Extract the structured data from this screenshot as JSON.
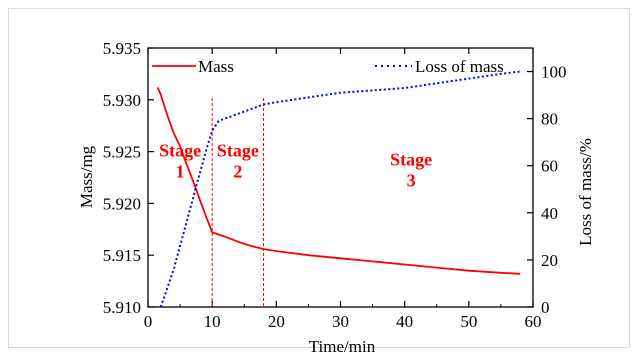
{
  "chart_data": {
    "type": "line",
    "xlabel": "Time/min",
    "ylabel": "Mass/mg",
    "y2label": "Loss of mass/%",
    "xlim": [
      0,
      60
    ],
    "ylim": [
      5.91,
      5.935
    ],
    "y2lim": [
      0,
      110
    ],
    "x_ticks": [
      "0",
      "10",
      "20",
      "30",
      "40",
      "50",
      "60"
    ],
    "y_ticks": [
      "5.910",
      "5.915",
      "5.920",
      "5.925",
      "5.930",
      "5.935"
    ],
    "y2_ticks": [
      "0",
      "20",
      "40",
      "60",
      "80",
      "100"
    ],
    "grid": false,
    "legend_placement": "top",
    "series": [
      {
        "name": "Mass",
        "axis": "left",
        "style": "solid",
        "color": "#ff0000",
        "x": [
          1.5,
          2,
          3,
          4,
          5,
          6,
          7,
          8,
          9,
          10,
          11,
          12,
          14,
          16,
          18,
          20,
          25,
          30,
          35,
          40,
          45,
          50,
          55,
          58
        ],
        "y": [
          5.9312,
          5.9305,
          5.9285,
          5.9268,
          5.9255,
          5.9238,
          5.9222,
          5.9205,
          5.9188,
          5.9172,
          5.917,
          5.9168,
          5.9163,
          5.9159,
          5.9156,
          5.9154,
          5.915,
          5.9147,
          5.9144,
          5.9141,
          5.9138,
          5.9135,
          5.9133,
          5.9132
        ]
      },
      {
        "name": "Loss of mass",
        "axis": "right",
        "style": "dotted",
        "color": "#0000ff",
        "x": [
          2,
          3,
          4,
          5,
          6,
          7,
          8,
          9,
          10,
          11,
          12,
          14,
          16,
          18,
          20,
          25,
          30,
          35,
          40,
          45,
          50,
          55,
          58
        ],
        "y": [
          0,
          8,
          16,
          26,
          36,
          46,
          56,
          66,
          75,
          79,
          80,
          82,
          84,
          86,
          87,
          89,
          91,
          92,
          93,
          95,
          97,
          99,
          100
        ]
      }
    ],
    "vlines": [
      10,
      18
    ],
    "annotations": [
      {
        "line1": "Stage",
        "line2": "1",
        "x": 5,
        "y2_pos": 64
      },
      {
        "line1": "Stage",
        "line2": "2",
        "x": 14,
        "y2_pos": 64
      },
      {
        "line1": "Stage",
        "line2": "3",
        "x": 41,
        "y2_pos": 60
      }
    ]
  },
  "colors": {
    "mass": "#ff0000",
    "loss": "#0000ff",
    "axis": "#000000"
  }
}
